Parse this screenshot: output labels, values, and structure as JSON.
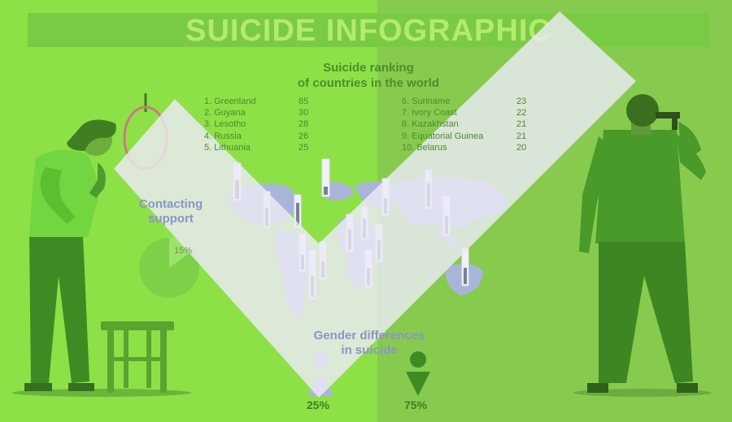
{
  "title": "SUICIDE INFOGRAPHIC",
  "ranking": {
    "heading_line1": "Suicide ranking",
    "heading_line2": "of countries in the world",
    "left": [
      {
        "label": "1. Greenland",
        "value": "85"
      },
      {
        "label": "2. Guyana",
        "value": "30"
      },
      {
        "label": "3. Lesotho",
        "value": "28"
      },
      {
        "label": "4. Russia",
        "value": "26"
      },
      {
        "label": "5. Lithuania",
        "value": "25"
      }
    ],
    "right": [
      {
        "label": "6. Suriname",
        "value": "23"
      },
      {
        "label": "7. Ivory Coast",
        "value": "22"
      },
      {
        "label": "8. Kazakhstan",
        "value": "21"
      },
      {
        "label": "9. Equatorial Guinea",
        "value": "21"
      },
      {
        "label": "10. Belarus",
        "value": "20"
      }
    ]
  },
  "support": {
    "line1": "Contacting",
    "line2": "support",
    "pie_label": "15%",
    "pie_fraction": 0.15
  },
  "gender": {
    "line1": "Gender differences",
    "line2": "in suicide",
    "female_pct": "25%",
    "male_pct": "75%"
  },
  "colors": {
    "bg_left": "#8ee047",
    "bg_right": "#87cb4e",
    "accent_dark": "#4b8f2a",
    "overlay": "#eceaf5",
    "map": "#a9b5d8"
  }
}
